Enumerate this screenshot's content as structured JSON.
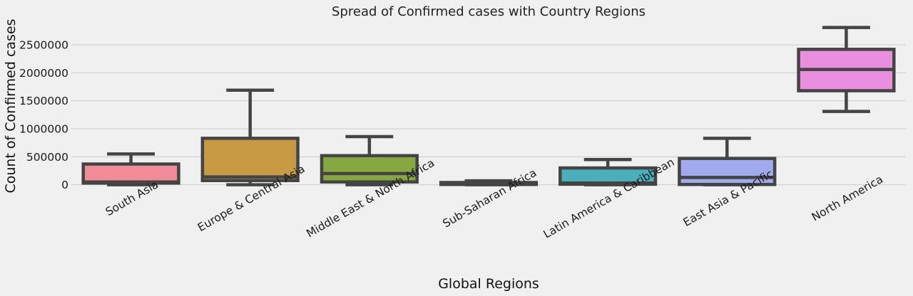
{
  "chart_data": {
    "type": "box",
    "title": "Spread of Confirmed cases with Country Regions",
    "xlabel": "Global Regions",
    "ylabel": "Count of Confirmed cases",
    "ylim": [
      -30000,
      2920000
    ],
    "yticks": [
      0,
      500000,
      1000000,
      1500000,
      2000000,
      2500000
    ],
    "ytick_labels": [
      "0",
      "500000",
      "1000000",
      "1500000",
      "2000000",
      "2500000"
    ],
    "grid": "horizontal",
    "categories": [
      "South Asia",
      "Europe & Central Asia",
      "Middle East & North Africa",
      "Sub-Saharan Africa",
      "Latin America & Caribbean",
      "East Asia & Pacific",
      "North America"
    ],
    "boxes": [
      {
        "category": "South Asia",
        "min": 0,
        "q1": 30000,
        "median": 50000,
        "q3": 370000,
        "max": 550000,
        "color": "#f08c97"
      },
      {
        "category": "Europe & Central Asia",
        "min": 0,
        "q1": 75000,
        "median": 140000,
        "q3": 830000,
        "max": 1690000,
        "color": "#c79a43"
      },
      {
        "category": "Middle East & North Africa",
        "min": 0,
        "q1": 50000,
        "median": 200000,
        "q3": 520000,
        "max": 860000,
        "color": "#87a740"
      },
      {
        "category": "Sub-Saharan Africa",
        "min": 0,
        "q1": 5000,
        "median": 20000,
        "q3": 40000,
        "max": 70000,
        "color": "#46a96b"
      },
      {
        "category": "Latin America & Caribbean",
        "min": 0,
        "q1": 10000,
        "median": 30000,
        "q3": 300000,
        "max": 450000,
        "color": "#4aaebb"
      },
      {
        "category": "East Asia & Pacific",
        "min": 0,
        "q1": 5000,
        "median": 130000,
        "q3": 470000,
        "max": 830000,
        "color": "#a0aaec"
      },
      {
        "category": "North America",
        "min": 1310000,
        "q1": 1680000,
        "median": 2060000,
        "q3": 2420000,
        "max": 2810000,
        "color": "#ea8ee0"
      }
    ]
  }
}
